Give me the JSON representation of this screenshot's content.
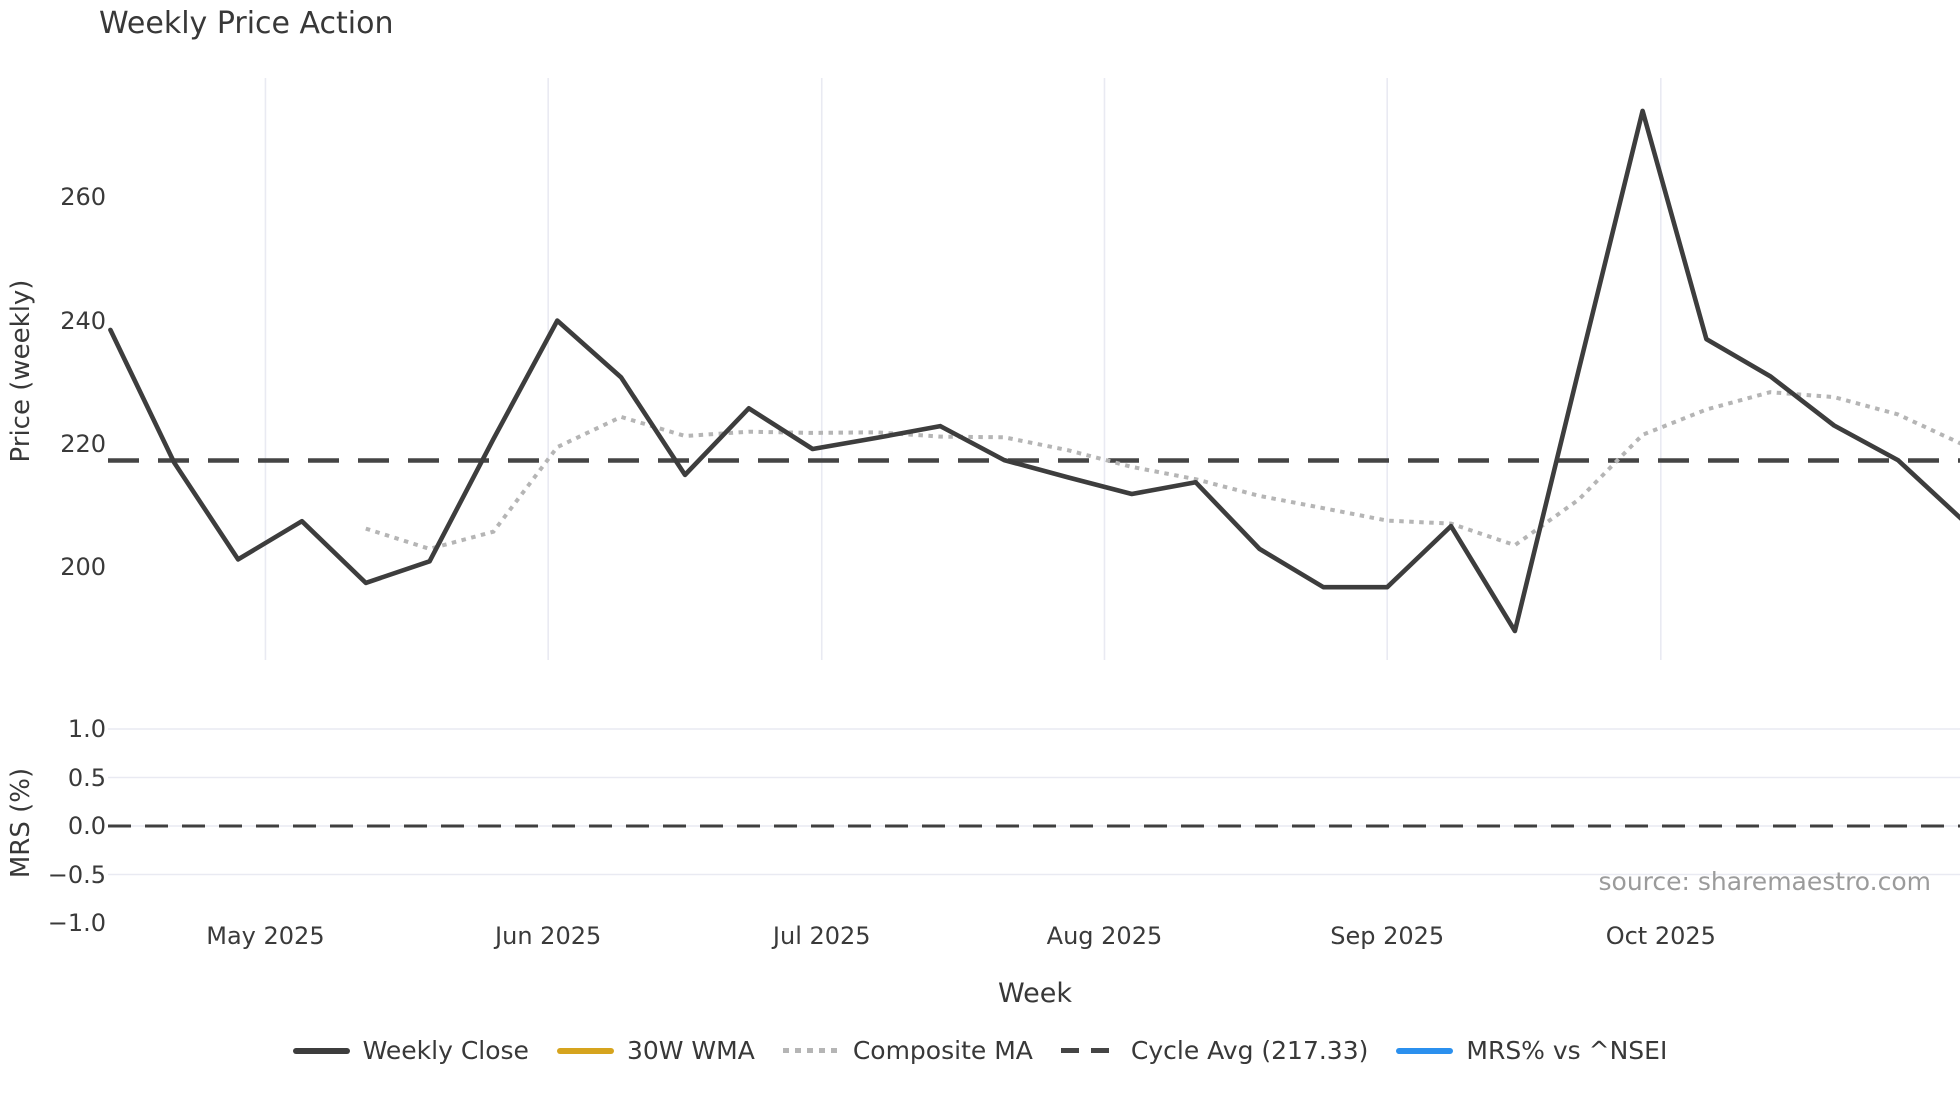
{
  "title": "Weekly Price Action",
  "price_axis_label": "Price (weekly)",
  "mrs_axis_label": "MRS (%)",
  "x_axis_label": "Week",
  "source": "source: sharemaestro.com",
  "colors": {
    "weekly_close": "#3d3d3d",
    "wma_30w": "#d6a41e",
    "composite_ma": "#b5b5b5",
    "cycle_avg": "#454545",
    "mrs_line": "#2b90ee",
    "gridline": "#e9eaf2",
    "text": "#383838",
    "source_text": "#9b9b9b"
  },
  "legend": {
    "items": [
      {
        "label": "Weekly Close",
        "style": "solid",
        "color": "#3d3d3d"
      },
      {
        "label": "30W WMA",
        "style": "solid",
        "color": "#d6a41e"
      },
      {
        "label": "Composite MA",
        "style": "dotted",
        "color": "#b5b5b5"
      },
      {
        "label": "Cycle Avg (217.33)",
        "style": "dashed",
        "color": "#454545"
      },
      {
        "label": "MRS% vs ^NSEI",
        "style": "solid",
        "color": "#2b90ee"
      }
    ]
  },
  "chart_data": {
    "type": "line",
    "title": "Weekly Price Action",
    "xlabel": "Week",
    "ylabel_price": "Price (weekly)",
    "ylabel_mrs": "MRS (%)",
    "x_weeks": [
      "2025-04-14",
      "2025-04-21",
      "2025-04-28",
      "2025-05-05",
      "2025-05-12",
      "2025-05-19",
      "2025-05-26",
      "2025-06-02",
      "2025-06-09",
      "2025-06-16",
      "2025-06-23",
      "2025-06-30",
      "2025-07-07",
      "2025-07-14",
      "2025-07-21",
      "2025-07-28",
      "2025-08-04",
      "2025-08-11",
      "2025-08-18",
      "2025-08-25",
      "2025-09-01",
      "2025-09-08",
      "2025-09-15",
      "2025-09-22",
      "2025-09-29",
      "2025-10-06",
      "2025-10-13",
      "2025-10-20",
      "2025-10-27",
      "2025-11-03"
    ],
    "series": [
      {
        "name": "Weekly Close",
        "panel": "price",
        "style": "solid",
        "color": "#3d3d3d",
        "visible": true,
        "values": [
          238.5,
          217.0,
          201.3,
          207.5,
          197.5,
          201.0,
          220.8,
          240.0,
          230.8,
          215.0,
          225.8,
          219.2,
          221.0,
          222.9,
          217.4,
          214.6,
          211.9,
          213.8,
          203.0,
          196.8,
          196.8,
          206.7,
          189.7,
          232.0,
          274.0,
          237.0,
          231.0,
          223.0,
          217.4,
          207.8
        ]
      },
      {
        "name": "30W WMA",
        "panel": "price",
        "style": "solid",
        "color": "#d6a41e",
        "visible": false,
        "values": null
      },
      {
        "name": "Composite MA",
        "panel": "price",
        "style": "dotted",
        "color": "#b5b5b5",
        "visible": true,
        "values": [
          null,
          null,
          null,
          null,
          206.3,
          203.0,
          205.8,
          219.5,
          224.4,
          221.3,
          222.0,
          221.8,
          221.9,
          221.2,
          221.1,
          219.0,
          216.3,
          214.3,
          211.6,
          209.6,
          207.6,
          207.1,
          203.6,
          211.0,
          221.5,
          225.6,
          228.4,
          227.6,
          224.8,
          220.0
        ]
      },
      {
        "name": "Cycle Avg (217.33)",
        "panel": "price",
        "style": "dashed",
        "color": "#454545",
        "visible": true,
        "constant": 217.33
      },
      {
        "name": "MRS% vs ^NSEI",
        "panel": "mrs",
        "style": "solid",
        "color": "#2b90ee",
        "visible": false,
        "values": null
      }
    ],
    "price_axis": {
      "tick_labels": [
        "200",
        "220",
        "240",
        "260"
      ],
      "tick_values": [
        200,
        220,
        240,
        260
      ],
      "ylim": [
        185,
        279
      ]
    },
    "mrs_axis": {
      "tick_labels": [
        "1.0",
        "0.5",
        "0.0",
        "−0.5",
        "−1.0"
      ],
      "tick_values": [
        1.0,
        0.5,
        0.0,
        -0.5,
        -1.0
      ],
      "ylim": [
        -1.15,
        1.18
      ],
      "zero_line_dashed": true
    },
    "x_ticks": {
      "labels": [
        "May 2025",
        "Jun 2025",
        "Jul 2025",
        "Aug 2025",
        "Sep 2025",
        "Oct 2025"
      ]
    },
    "grid": {
      "price_panel_vertical_month_lines": true,
      "mrs_panel_horizontal_lines": [
        1.0,
        0.5,
        0.0,
        -0.5
      ]
    },
    "legend_position": "bottom",
    "source_annotation": "source: sharemaestro.com"
  }
}
